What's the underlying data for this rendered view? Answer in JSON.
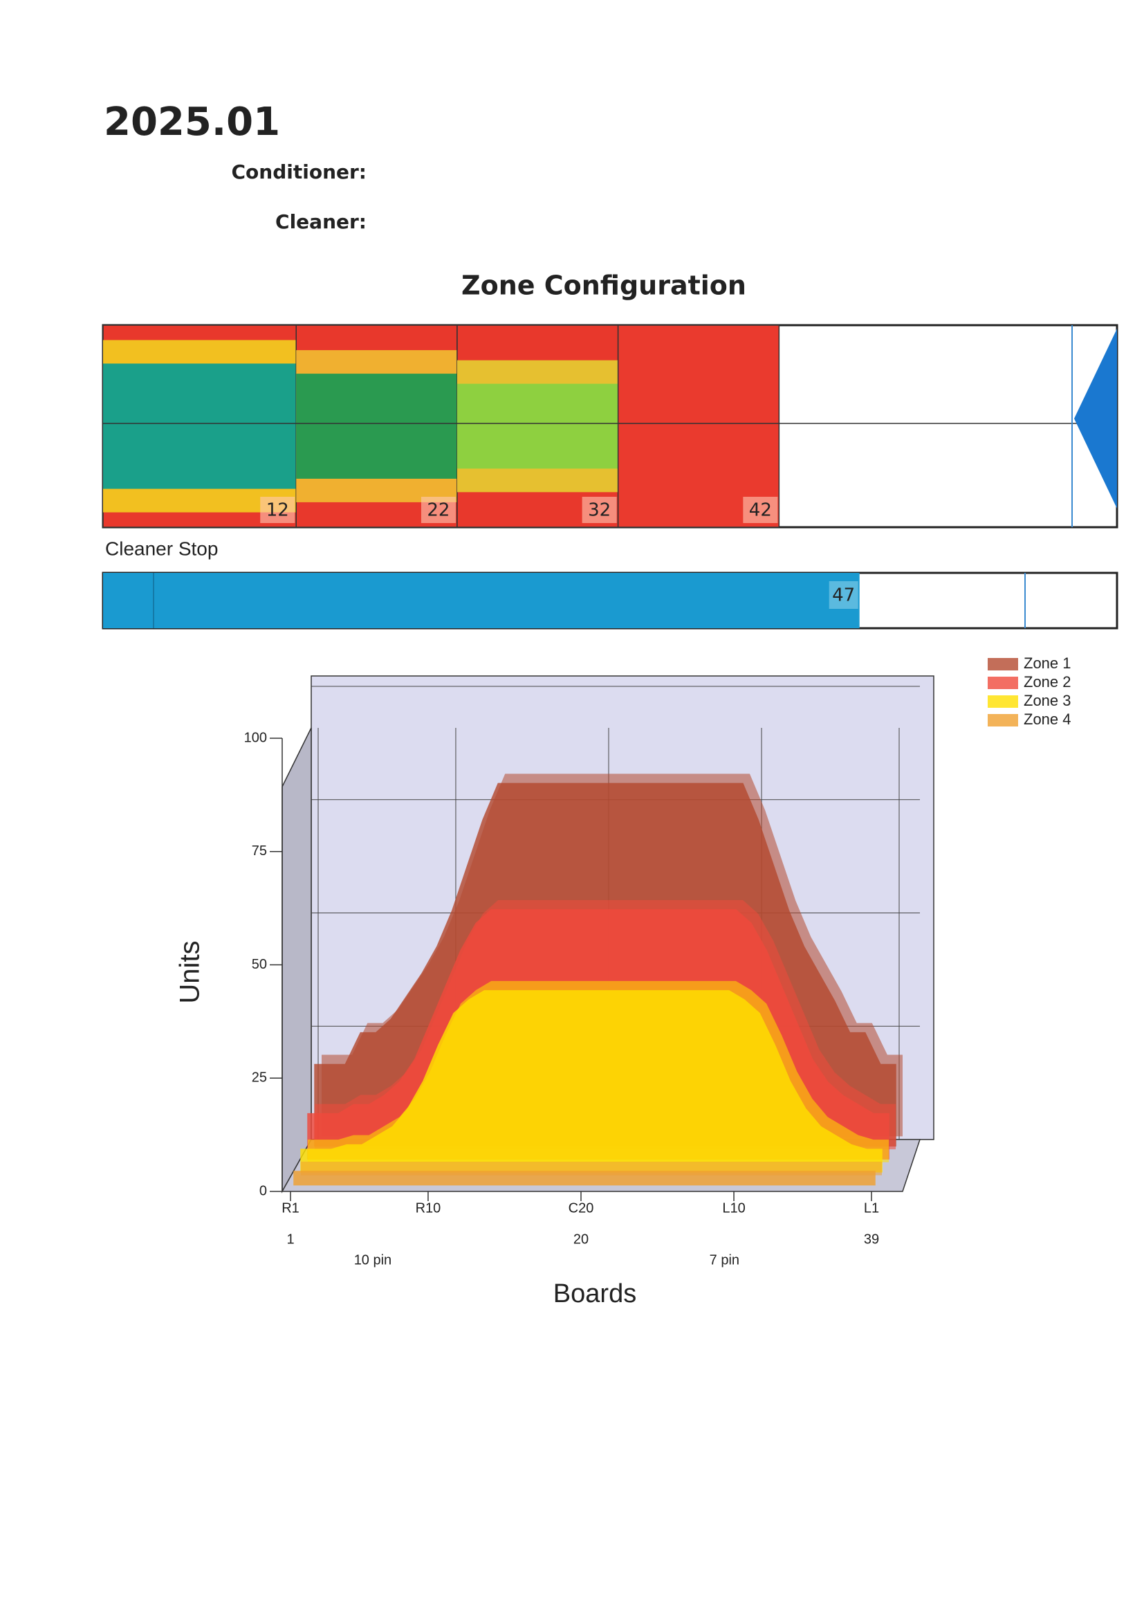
{
  "header": {
    "title": "2025.01",
    "conditioner": "Conditioner:",
    "cleaner": "Cleaner:"
  },
  "zones": {
    "title": "Zone Configuration",
    "scale": [
      0,
      63
    ],
    "markers": [
      12,
      22,
      32,
      42
    ],
    "stop_label": "Cleaner Stop",
    "stop": 47
  },
  "chart_data": {
    "type": "area3d",
    "xlabel": "Boards",
    "ylabel": "Units",
    "x": [
      1,
      2,
      3,
      4,
      5,
      6,
      7,
      8,
      9,
      10,
      11,
      12,
      13,
      14,
      15,
      16,
      17,
      18,
      19,
      20,
      21,
      22,
      23,
      24,
      25,
      26,
      27,
      28,
      29,
      30,
      31,
      32,
      33,
      34,
      35,
      36,
      37,
      38,
      39
    ],
    "xlim": [
      1,
      39
    ],
    "xticks": [
      {
        "value": 1,
        "label": "R1"
      },
      {
        "value": 10,
        "label": "R10"
      },
      {
        "value": 20,
        "label": "C20"
      },
      {
        "value": 30,
        "label": "L10"
      },
      {
        "value": 39,
        "label": "L1"
      }
    ],
    "xticks2": [
      1,
      20,
      39
    ],
    "annotations": [
      {
        "x": 10,
        "text": "10 pin"
      },
      {
        "x": 33,
        "text": "7 pin"
      }
    ],
    "ylim": [
      0,
      100
    ],
    "yticks": [
      0,
      25,
      50,
      75,
      100
    ],
    "grid": true,
    "legend": "top-right",
    "series": [
      {
        "name": "Zone 1",
        "color": "#b44a30",
        "values": [
          18,
          18,
          18,
          25,
          25,
          28,
          33,
          38,
          44,
          52,
          62,
          72,
          80,
          80,
          80,
          80,
          80,
          80,
          80,
          80,
          80,
          80,
          80,
          80,
          80,
          80,
          80,
          80,
          80,
          72,
          62,
          52,
          44,
          38,
          32,
          25,
          25,
          18,
          18
        ]
      },
      {
        "name": "Zone 2",
        "color": "#f04a3c",
        "values": [
          10,
          10,
          10,
          12,
          12,
          14,
          17,
          22,
          30,
          38,
          46,
          52,
          55,
          55,
          55,
          55,
          55,
          55,
          55,
          55,
          55,
          55,
          55,
          55,
          55,
          55,
          55,
          55,
          55,
          52,
          46,
          38,
          30,
          22,
          17,
          14,
          12,
          10,
          10
        ]
      },
      {
        "name": "Zone 3",
        "color": "#ffe000",
        "values": [
          5,
          5,
          5,
          6,
          6,
          8,
          10,
          14,
          20,
          28,
          35,
          38,
          40,
          40,
          40,
          40,
          40,
          40,
          40,
          40,
          40,
          40,
          40,
          40,
          40,
          40,
          40,
          40,
          40,
          38,
          35,
          28,
          20,
          14,
          10,
          8,
          6,
          5,
          5
        ]
      },
      {
        "name": "Zone 4",
        "color": "#f0a030",
        "values": [
          3,
          3,
          3,
          3,
          3,
          3,
          3,
          3,
          3,
          3,
          3,
          3,
          3,
          3,
          3,
          3,
          3,
          3,
          3,
          3,
          3,
          3,
          3,
          3,
          3,
          3,
          3,
          3,
          3,
          3,
          3,
          3,
          3,
          3,
          3,
          3,
          3,
          3,
          3
        ]
      }
    ]
  }
}
